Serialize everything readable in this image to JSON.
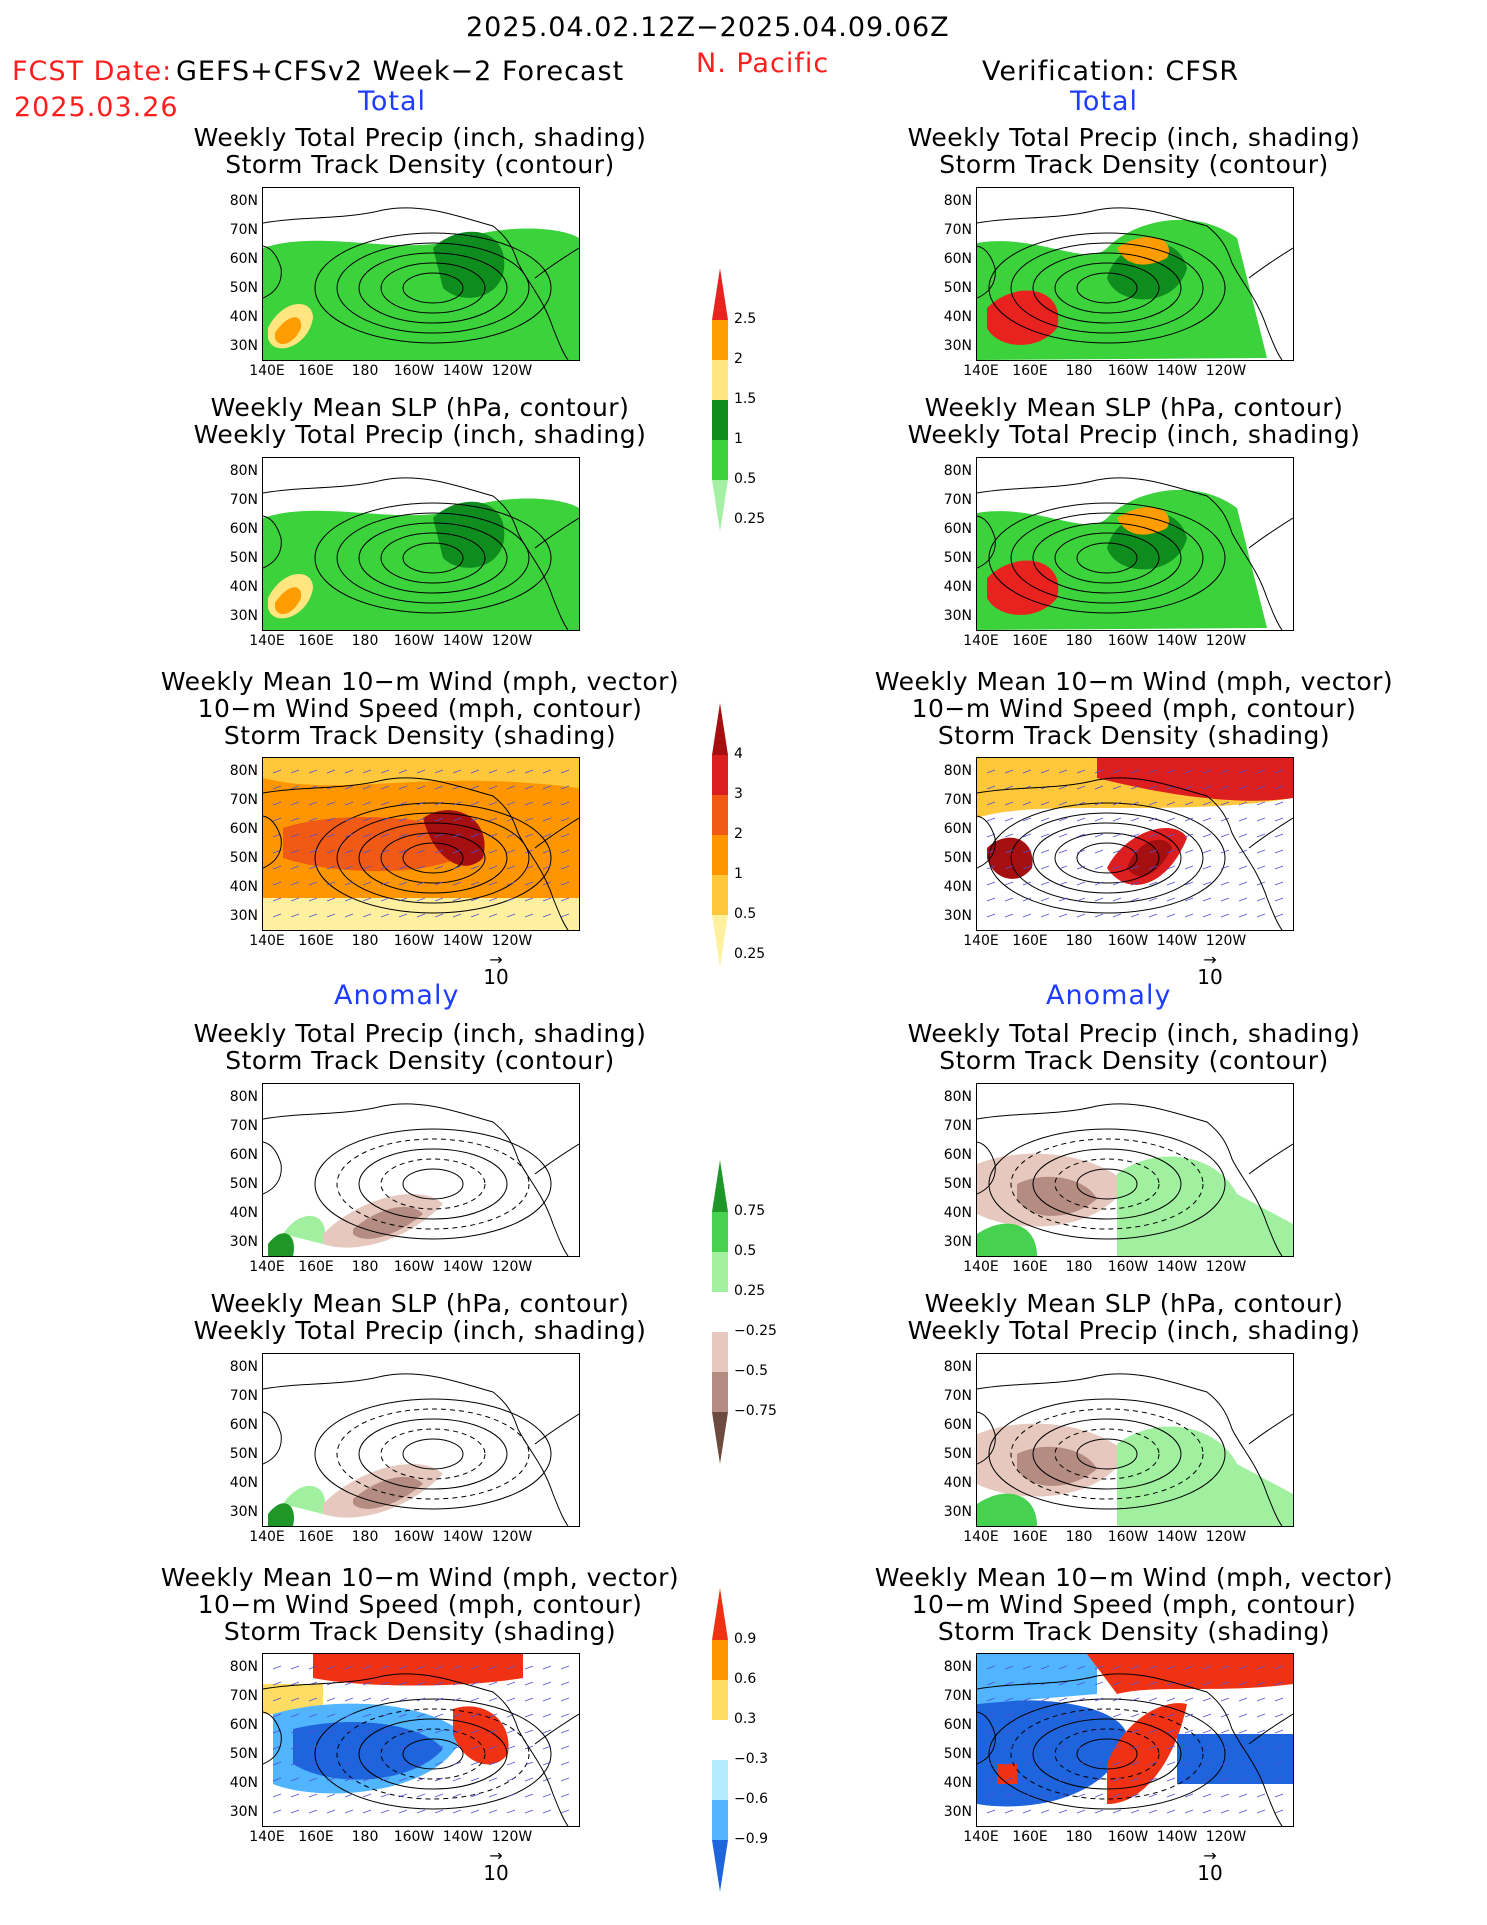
{
  "header": {
    "period": "2025.04.02.12Z−2025.04.09.06Z",
    "fcst_label": "FCST Date:",
    "fcst_model": "GEFS+CFSv2 Week−2 Forecast",
    "fcst_date": "2025.03.26",
    "region": "N. Pacific",
    "verification": "Verification: CFSR"
  },
  "sections": {
    "total": "Total",
    "anomaly": "Anomaly"
  },
  "panel_titles": {
    "precip_track": [
      "Weekly Total Precip (inch, shading)",
      "Storm Track Density (contour)"
    ],
    "slp_precip": [
      "Weekly Mean SLP (hPa, contour)",
      "Weekly Total Precip (inch, shading)"
    ],
    "wind_track": [
      "Weekly Mean 10−m Wind (mph, vector)",
      "10−m Wind Speed (mph, contour)",
      "Storm Track Density (shading)"
    ]
  },
  "axes": {
    "lat_labels": [
      "80N",
      "70N",
      "60N",
      "50N",
      "40N",
      "30N"
    ],
    "lon_labels": [
      "140E",
      "160E",
      "180",
      "160W",
      "140W",
      "120W"
    ]
  },
  "vector_ref": "10",
  "colorbars": {
    "precip_total": {
      "labels": [
        "2.5",
        "2",
        "1.5",
        "1",
        "0.5",
        "0.25"
      ],
      "colors": [
        "#e8221e",
        "#ff9c00",
        "#ffe680",
        "#0f8c1e",
        "#3cd23c",
        "#a6f0a6"
      ]
    },
    "track_total": {
      "labels": [
        "4",
        "3",
        "2",
        "1",
        "0.5",
        "0.25"
      ],
      "colors": [
        "#a50f0f",
        "#dc1e1e",
        "#f05a14",
        "#ff9600",
        "#ffc83c",
        "#fff0a0"
      ]
    },
    "precip_anom": {
      "labels": [
        "0.75",
        "0.5",
        "0.25",
        "−0.25",
        "−0.5",
        "−0.75"
      ],
      "colors": [
        "#1e9628",
        "#46d250",
        "#a0f0a0",
        "#ffffff",
        "#e6c8be",
        "#b48c82",
        "#6e4b41"
      ]
    },
    "track_anom": {
      "labels": [
        "0.9",
        "0.6",
        "0.3",
        "−0.3",
        "−0.6",
        "−0.9"
      ],
      "colors": [
        "#f03214",
        "#ff9600",
        "#ffdc64",
        "#ffffff",
        "#b4ecff",
        "#50b4ff",
        "#1e64dc"
      ]
    }
  },
  "map_colors": {
    "land_outline": "#000000",
    "vector": "#5050d2"
  }
}
